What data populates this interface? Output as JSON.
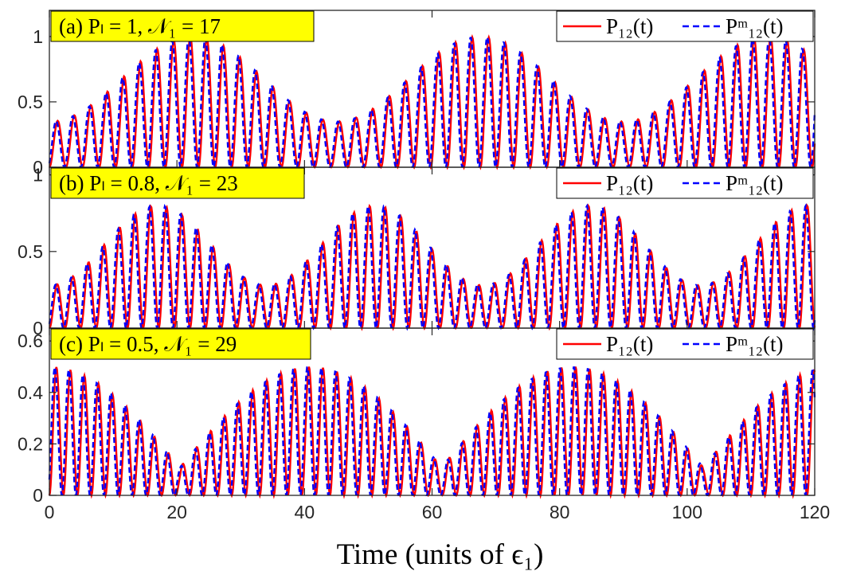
{
  "chart_data": [
    {
      "type": "line",
      "annotation": "(a) Pₗ = 1, 𝒩₁ = 17",
      "xlim": [
        0,
        120
      ],
      "ylim": [
        0,
        1.2
      ],
      "yticks": [
        0,
        0.5,
        1
      ],
      "ytick_labels": [
        "0",
        "0.5",
        "1"
      ],
      "xticks": [
        0,
        20,
        40,
        60,
        80,
        100,
        120
      ],
      "legend": {
        "location": "top-right",
        "entries": [
          "P₁₂(t)",
          "Pᵐ₁₂(t)"
        ]
      },
      "model": {
        "amplitude": 1.0,
        "envelope_period": 45,
        "fast_period": 2.6,
        "num_points": 1201
      },
      "series": [
        {
          "name": "P₁₂(t)",
          "color": "#ff0000",
          "style": "solid"
        },
        {
          "name": "Pᵐ₁₂(t)",
          "color": "#0000ff",
          "style": "dashed"
        }
      ]
    },
    {
      "type": "line",
      "annotation": "(b) Pₗ = 0.8, 𝒩₁ = 23",
      "xlim": [
        0,
        120
      ],
      "ylim": [
        0,
        1.05
      ],
      "yticks": [
        0,
        0.5,
        1
      ],
      "ytick_labels": [
        "0",
        "0.5",
        "1"
      ],
      "xticks": [
        0,
        20,
        40,
        60,
        80,
        100,
        120
      ],
      "legend": {
        "location": "top-right",
        "entries": [
          "P₁₂(t)",
          "Pᵐ₁₂(t)"
        ]
      },
      "model": {
        "amplitude": 0.8,
        "envelope_period": 34,
        "fast_period": 2.45,
        "num_points": 1201
      },
      "series": [
        {
          "name": "P₁₂(t)",
          "color": "#ff0000",
          "style": "solid"
        },
        {
          "name": "Pᵐ₁₂(t)",
          "color": "#0000ff",
          "style": "dashed"
        }
      ]
    },
    {
      "type": "line",
      "annotation": "(c) Pₗ = 0.5, 𝒩₁ = 29",
      "xlim": [
        0,
        120
      ],
      "ylim": [
        0,
        0.65
      ],
      "yticks": [
        0,
        0.2,
        0.4,
        0.6
      ],
      "ytick_labels": [
        "0",
        "0.2",
        "0.4",
        "0.6"
      ],
      "xticks": [
        0,
        20,
        40,
        60,
        80,
        100,
        120
      ],
      "xtick_labels": [
        "0",
        "20",
        "40",
        "60",
        "80",
        "100",
        "120"
      ],
      "xlabel": "Time (units of ϵ₁)",
      "legend": {
        "location": "top-right",
        "entries": [
          "P₁₂(t)",
          "Pᵐ₁₂(t)"
        ]
      },
      "model": {
        "amplitude": 0.5,
        "envelope_period": 41,
        "fast_period": 2.2,
        "num_points": 1201
      },
      "series": [
        {
          "name": "P₁₂(t)",
          "color": "#ff0000",
          "style": "solid"
        },
        {
          "name": "Pᵐ₁₂(t)",
          "color": "#0000ff",
          "style": "dashed"
        }
      ]
    }
  ],
  "colors": {
    "annotation_bg": "#ffff00",
    "axis": "#262626",
    "series_1": "#ff0000",
    "series_2": "#0000ff"
  }
}
